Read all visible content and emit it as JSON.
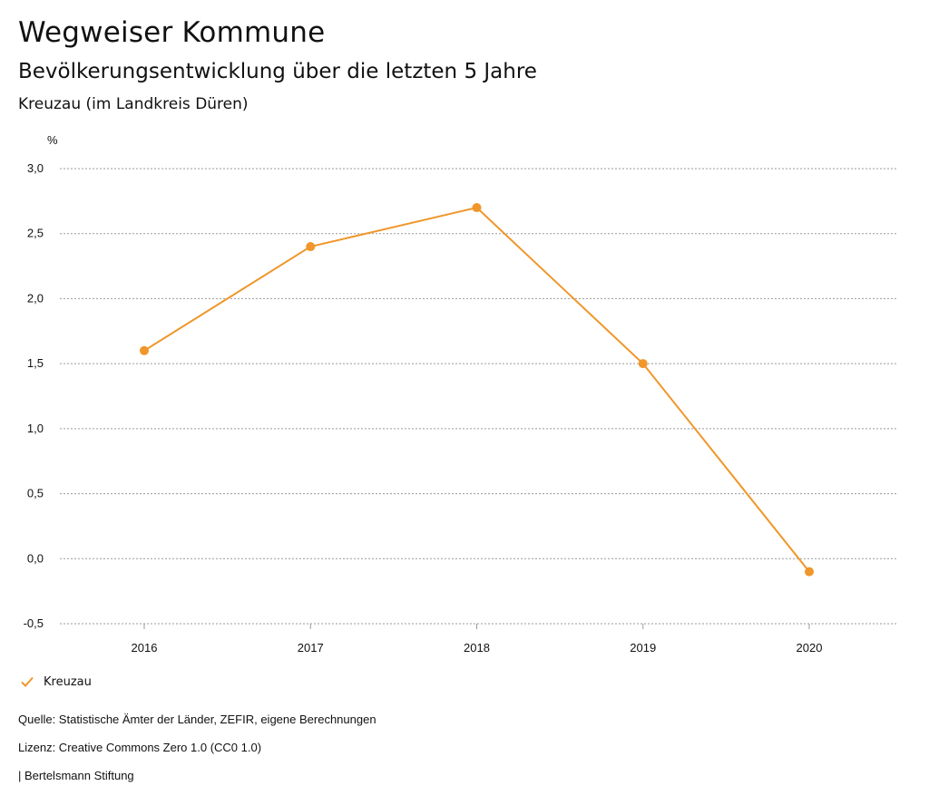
{
  "header": {
    "title": "Wegweiser Kommune",
    "subtitle": "Bevölkerungsentwicklung über die letzten 5 Jahre",
    "region": "Kreuzau (im Landkreis Düren)"
  },
  "chart_data": {
    "type": "line",
    "title": "Bevölkerungsentwicklung über die letzten 5 Jahre",
    "ylabel": "%",
    "xlabel": "",
    "x": [
      "2016",
      "2017",
      "2018",
      "2019",
      "2020"
    ],
    "series": [
      {
        "name": "Kreuzau",
        "values": [
          1.6,
          2.4,
          2.7,
          1.5,
          -0.1
        ],
        "color": "#f0962a"
      }
    ],
    "ylim": [
      -0.5,
      3.0
    ],
    "yticks": [
      3.0,
      2.5,
      2.0,
      1.5,
      1.0,
      0.5,
      0.0,
      -0.5
    ],
    "ytick_labels": [
      "3,0",
      "2,5",
      "2,0",
      "1,5",
      "1,0",
      "0,5",
      "0,0",
      "-0,5"
    ],
    "grid": true,
    "legend": "bottom-left"
  },
  "legend": {
    "label": "Kreuzau",
    "icon": "check-icon"
  },
  "footer": {
    "source": "Quelle: Statistische Ämter der Länder, ZEFIR, eigene Berechnungen",
    "license": "Lizenz: Creative Commons Zero 1.0 (CC0 1.0)",
    "publisher": "| Bertelsmann Stiftung"
  }
}
